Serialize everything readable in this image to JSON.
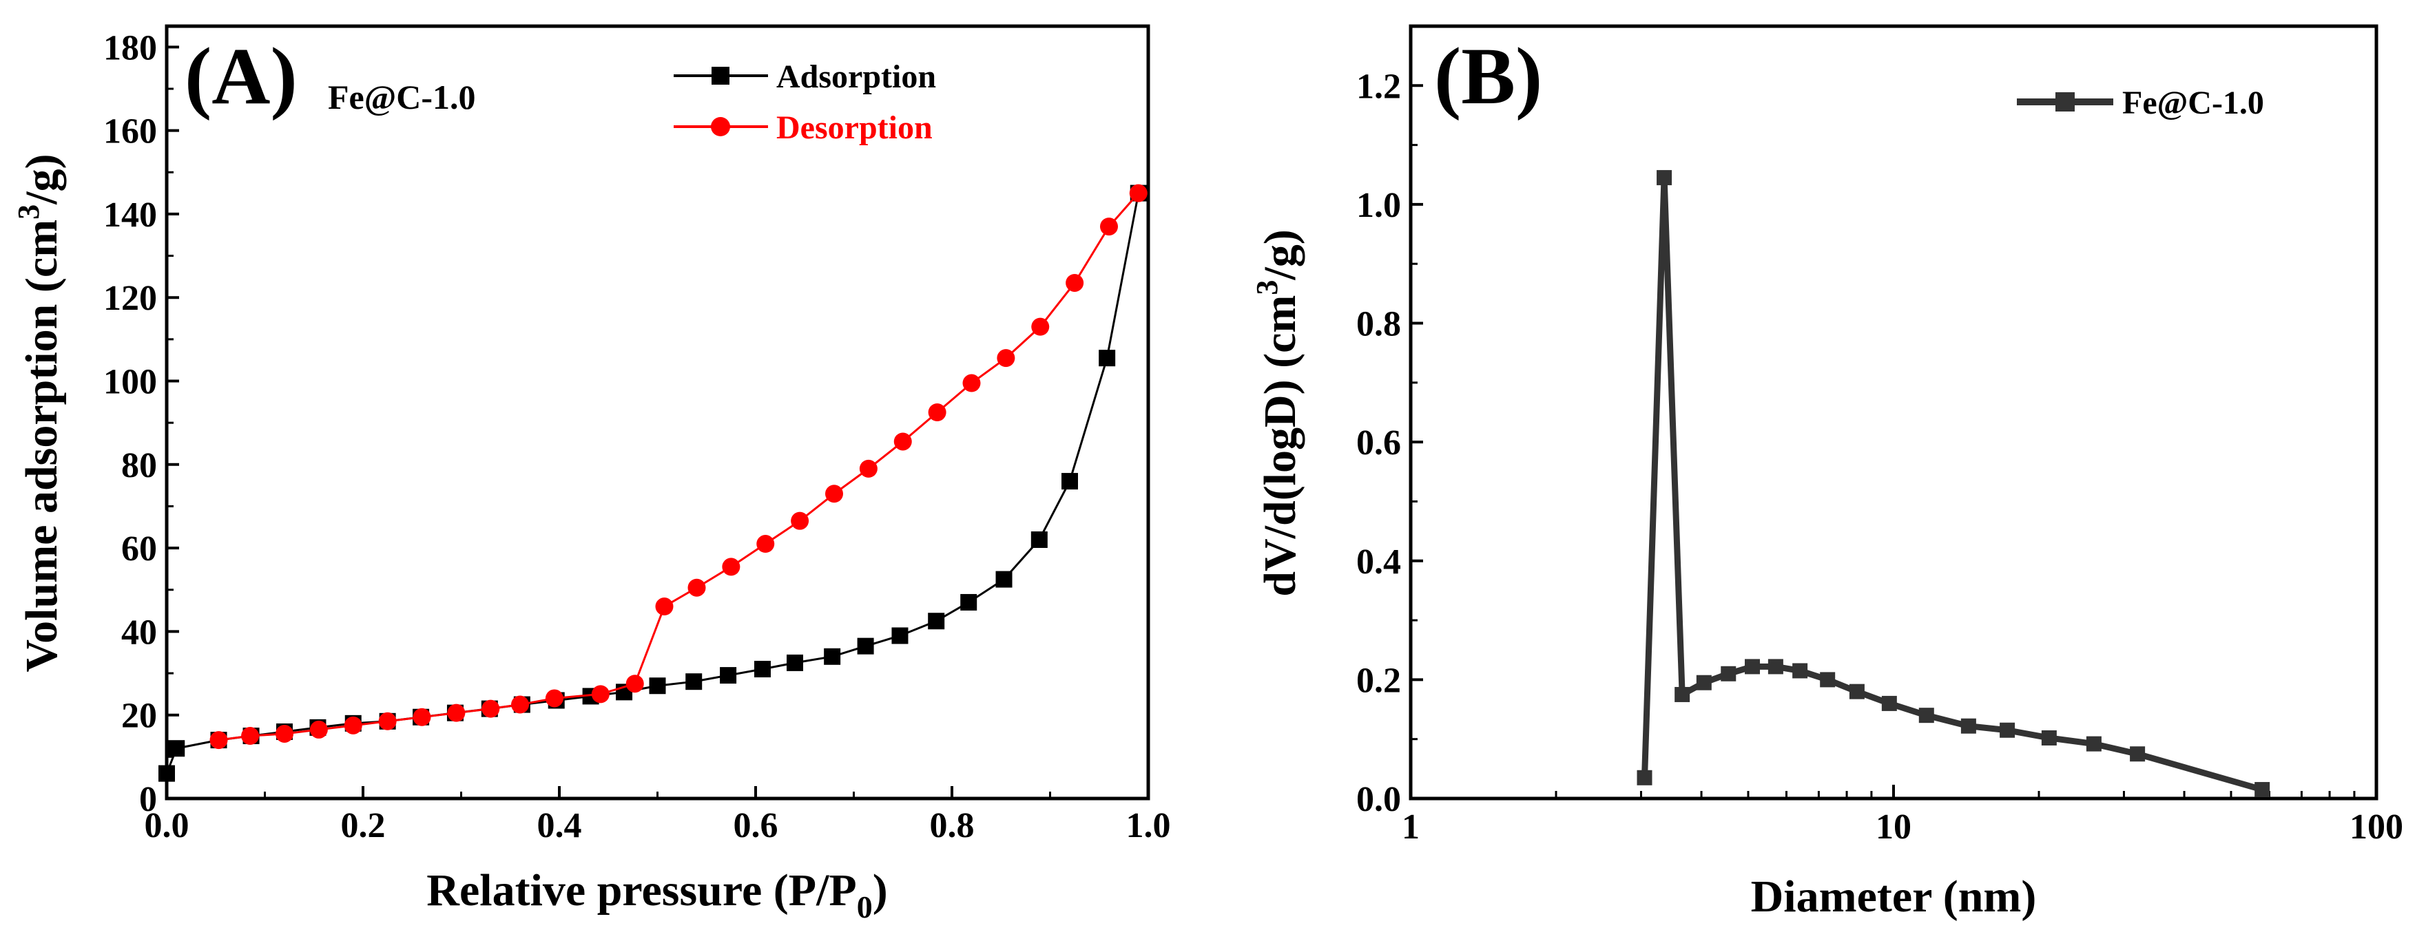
{
  "chart_data": [
    {
      "type": "line",
      "panel_label": "(A)",
      "sample": "Fe@C-1.0",
      "title": "",
      "xlabel": "Relative pressure (P/P",
      "xlabel_sub": "0",
      "xlabel_end": ")",
      "ylabel": "Volume adsorption (cm",
      "ylabel_sup": "3",
      "ylabel_end": "/g)",
      "xlim": [
        0,
        1.0
      ],
      "ylim": [
        0,
        185
      ],
      "x_ticks": [
        "0.0",
        "0.2",
        "0.4",
        "0.6",
        "0.8",
        "1.0"
      ],
      "y_ticks": [
        "0",
        "20",
        "40",
        "60",
        "80",
        "100",
        "120",
        "140",
        "160",
        "180"
      ],
      "legend_position": "top-center",
      "series": [
        {
          "name": "Adsorption",
          "color": "#000000",
          "marker": "square",
          "x": [
            0.0,
            0.01,
            0.053,
            0.086,
            0.12,
            0.154,
            0.19,
            0.225,
            0.259,
            0.294,
            0.329,
            0.362,
            0.397,
            0.432,
            0.466,
            0.5,
            0.537,
            0.572,
            0.607,
            0.64,
            0.678,
            0.712,
            0.747,
            0.784,
            0.817,
            0.853,
            0.889,
            0.92,
            0.958,
            0.99
          ],
          "y": [
            6,
            12,
            14,
            15,
            16,
            17,
            18,
            18.5,
            19.5,
            20.5,
            21.5,
            22.5,
            23.5,
            24.5,
            25.5,
            27,
            28,
            29.5,
            31,
            32.5,
            34,
            36.5,
            39,
            42.5,
            47,
            52.5,
            62,
            76,
            105.5,
            145
          ]
        },
        {
          "name": "Desorption",
          "color": "#ff0000",
          "marker": "circle",
          "x": [
            0.99,
            0.96,
            0.925,
            0.89,
            0.855,
            0.82,
            0.785,
            0.75,
            0.715,
            0.68,
            0.645,
            0.61,
            0.575,
            0.54,
            0.507,
            0.477,
            0.442,
            0.395,
            0.36,
            0.33,
            0.295,
            0.26,
            0.225,
            0.19,
            0.155,
            0.12,
            0.085,
            0.053
          ],
          "y": [
            145,
            137,
            123.5,
            113,
            105.5,
            99.5,
            92.5,
            85.5,
            79,
            73,
            66.5,
            61,
            55.5,
            50.5,
            46,
            27.5,
            25,
            24,
            22.5,
            21.5,
            20.5,
            19.5,
            18.5,
            17.5,
            16.5,
            15.5,
            15,
            14
          ]
        }
      ]
    },
    {
      "type": "line",
      "panel_label": "(B)",
      "title": "",
      "xlabel": "Diameter (nm)",
      "ylabel": "dV/d(logD) (cm",
      "ylabel_sup": "3",
      "ylabel_end": "/g)",
      "x_scale": "log",
      "xlim": [
        1,
        100
      ],
      "ylim": [
        0,
        1.3
      ],
      "x_ticks": [
        "1",
        "10",
        "100"
      ],
      "y_ticks": [
        "0.0",
        "0.2",
        "0.4",
        "0.6",
        "0.8",
        "1.0",
        "1.2"
      ],
      "legend_position": "top-right",
      "series": [
        {
          "name": "Fe@C-1.0",
          "color": "#333333",
          "marker": "square",
          "x": [
            3.05,
            3.35,
            3.65,
            4.05,
            4.55,
            5.1,
            5.7,
            6.4,
            7.3,
            8.4,
            9.8,
            11.7,
            14.3,
            17.2,
            21.0,
            26.0,
            32.0,
            58.0
          ],
          "y": [
            0.035,
            1.045,
            0.175,
            0.195,
            0.21,
            0.222,
            0.222,
            0.215,
            0.2,
            0.18,
            0.16,
            0.14,
            0.122,
            0.115,
            0.102,
            0.092,
            0.075,
            0.015
          ]
        }
      ]
    }
  ]
}
